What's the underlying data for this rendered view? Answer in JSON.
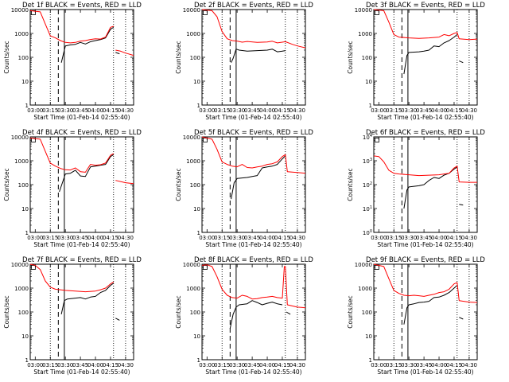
{
  "chart_data": {
    "type": "line",
    "series_colors": {
      "events": "#000000",
      "lld": "#ff0000"
    },
    "x_ticks": [
      "03:00",
      "03:15",
      "03:30",
      "03:45",
      "04:00",
      "04:15",
      "04:30"
    ],
    "x_tick_values_min": [
      180,
      195,
      210,
      225,
      240,
      255,
      270
    ],
    "xlim_min": [
      175,
      278
    ],
    "y_tick_values": [
      1,
      10,
      100,
      1000,
      10000
    ],
    "y_scale": "log",
    "ylim": [
      1,
      10000
    ],
    "xlabel": "Start Time (01-Feb-14 02:55:40)",
    "ylabel": "Counts/sec",
    "markers": {
      "dotted_min": [
        195,
        258,
        270
      ],
      "dashed_min": [
        203
      ],
      "solid_min": [
        209
      ]
    },
    "panels": [
      {
        "title": "Det 1f BLACK = Events, RED = LLD",
        "tick_style": "plain",
        "lld": [
          [
            175,
            9000
          ],
          [
            185,
            8000
          ],
          [
            190,
            2500
          ],
          [
            195,
            800
          ],
          [
            200,
            650
          ],
          [
            205,
            500
          ],
          [
            210,
            420
          ],
          [
            215,
            400
          ],
          [
            220,
            420
          ],
          [
            225,
            480
          ],
          [
            230,
            500
          ],
          [
            235,
            560
          ],
          [
            240,
            600
          ],
          [
            245,
            580
          ],
          [
            250,
            700
          ],
          [
            255,
            1800
          ],
          [
            258,
            2000
          ]
        ],
        "lld_tail": [
          [
            260,
            200
          ],
          [
            265,
            180
          ],
          [
            270,
            150
          ],
          [
            278,
            120
          ]
        ],
        "events": [
          [
            206,
            60
          ],
          [
            210,
            300
          ],
          [
            215,
            330
          ],
          [
            220,
            350
          ],
          [
            225,
            420
          ],
          [
            230,
            360
          ],
          [
            235,
            450
          ],
          [
            240,
            500
          ],
          [
            245,
            550
          ],
          [
            250,
            650
          ],
          [
            255,
            1500
          ],
          [
            258,
            1800
          ]
        ],
        "events_tail": [
          [
            260,
            160
          ],
          [
            264,
            140
          ]
        ]
      },
      {
        "title": "Det 2f BLACK = Events, RED = LLD",
        "tick_style": "plain",
        "lld": [
          [
            175,
            10000
          ],
          [
            185,
            9000
          ],
          [
            190,
            5000
          ],
          [
            195,
            1200
          ],
          [
            200,
            600
          ],
          [
            205,
            500
          ],
          [
            210,
            480
          ],
          [
            215,
            430
          ],
          [
            220,
            460
          ],
          [
            230,
            420
          ],
          [
            240,
            440
          ],
          [
            245,
            470
          ],
          [
            250,
            400
          ],
          [
            255,
            430
          ],
          [
            258,
            450
          ],
          [
            265,
            350
          ],
          [
            270,
            300
          ],
          [
            278,
            250
          ]
        ],
        "lld_tail": [],
        "events": [
          [
            204,
            60
          ],
          [
            206,
            90
          ],
          [
            209,
            220
          ],
          [
            212,
            200
          ],
          [
            220,
            180
          ],
          [
            230,
            190
          ],
          [
            240,
            200
          ],
          [
            245,
            220
          ],
          [
            250,
            170
          ],
          [
            255,
            180
          ],
          [
            258,
            190
          ]
        ],
        "events_tail": []
      },
      {
        "title": "Det 3f BLACK = Events, RED = LLD",
        "tick_style": "plain",
        "lld": [
          [
            175,
            10000
          ],
          [
            185,
            9000
          ],
          [
            190,
            3000
          ],
          [
            195,
            900
          ],
          [
            200,
            700
          ],
          [
            210,
            650
          ],
          [
            220,
            620
          ],
          [
            230,
            650
          ],
          [
            240,
            700
          ],
          [
            245,
            900
          ],
          [
            250,
            800
          ],
          [
            255,
            1000
          ],
          [
            258,
            1100
          ],
          [
            260,
            600
          ],
          [
            270,
            550
          ],
          [
            278,
            580
          ]
        ],
        "lld_tail": [],
        "events": [
          [
            205,
            20
          ],
          [
            208,
            120
          ],
          [
            210,
            160
          ],
          [
            220,
            170
          ],
          [
            225,
            180
          ],
          [
            230,
            200
          ],
          [
            235,
            300
          ],
          [
            240,
            280
          ],
          [
            245,
            400
          ],
          [
            250,
            500
          ],
          [
            255,
            700
          ],
          [
            258,
            900
          ]
        ],
        "events_tail": [
          [
            260,
            70
          ],
          [
            264,
            60
          ]
        ]
      },
      {
        "title": "Det 4f BLACK = Events, RED = LLD",
        "tick_style": "plain",
        "lld": [
          [
            175,
            9000
          ],
          [
            185,
            8000
          ],
          [
            190,
            2500
          ],
          [
            195,
            800
          ],
          [
            200,
            600
          ],
          [
            205,
            480
          ],
          [
            210,
            420
          ],
          [
            215,
            410
          ],
          [
            220,
            500
          ],
          [
            225,
            350
          ],
          [
            230,
            330
          ],
          [
            235,
            700
          ],
          [
            240,
            650
          ],
          [
            245,
            680
          ],
          [
            250,
            800
          ],
          [
            255,
            1700
          ],
          [
            258,
            2000
          ]
        ],
        "lld_tail": [
          [
            260,
            150
          ],
          [
            270,
            120
          ],
          [
            278,
            110
          ]
        ],
        "events": [
          [
            204,
            50
          ],
          [
            210,
            280
          ],
          [
            215,
            300
          ],
          [
            220,
            400
          ],
          [
            225,
            230
          ],
          [
            230,
            220
          ],
          [
            235,
            550
          ],
          [
            240,
            600
          ],
          [
            245,
            650
          ],
          [
            250,
            700
          ],
          [
            255,
            1500
          ],
          [
            258,
            1800
          ]
        ],
        "events_tail": []
      },
      {
        "title": "Det 5f BLACK = Events, RED = LLD",
        "tick_style": "plain",
        "lld": [
          [
            175,
            10000
          ],
          [
            185,
            8000
          ],
          [
            190,
            3000
          ],
          [
            195,
            900
          ],
          [
            200,
            700
          ],
          [
            205,
            600
          ],
          [
            210,
            560
          ],
          [
            215,
            700
          ],
          [
            220,
            520
          ],
          [
            225,
            500
          ],
          [
            230,
            550
          ],
          [
            235,
            600
          ],
          [
            240,
            700
          ],
          [
            245,
            750
          ],
          [
            250,
            900
          ],
          [
            255,
            1500
          ],
          [
            258,
            1800
          ],
          [
            260,
            350
          ],
          [
            270,
            320
          ],
          [
            278,
            300
          ]
        ],
        "lld_tail": [],
        "events": [
          [
            204,
            25
          ],
          [
            207,
            120
          ],
          [
            210,
            180
          ],
          [
            215,
            190
          ],
          [
            220,
            200
          ],
          [
            225,
            220
          ],
          [
            230,
            240
          ],
          [
            235,
            500
          ],
          [
            240,
            550
          ],
          [
            245,
            600
          ],
          [
            250,
            700
          ],
          [
            255,
            1200
          ],
          [
            258,
            1600
          ]
        ],
        "events_tail": []
      },
      {
        "title": "Det 6f BLACK = Events, RED = LLD",
        "tick_style": "power",
        "lld": [
          [
            175,
            1600
          ],
          [
            180,
            1500
          ],
          [
            185,
            900
          ],
          [
            190,
            400
          ],
          [
            195,
            300
          ],
          [
            200,
            280
          ],
          [
            210,
            260
          ],
          [
            220,
            240
          ],
          [
            230,
            250
          ],
          [
            240,
            260
          ],
          [
            245,
            280
          ],
          [
            250,
            300
          ],
          [
            255,
            500
          ],
          [
            258,
            600
          ],
          [
            260,
            130
          ],
          [
            270,
            125
          ],
          [
            278,
            125
          ]
        ],
        "lld_tail": [],
        "events": [
          [
            205,
            10
          ],
          [
            208,
            60
          ],
          [
            210,
            80
          ],
          [
            220,
            90
          ],
          [
            225,
            100
          ],
          [
            230,
            150
          ],
          [
            235,
            200
          ],
          [
            240,
            180
          ],
          [
            245,
            250
          ],
          [
            250,
            300
          ],
          [
            255,
            450
          ],
          [
            258,
            550
          ]
        ],
        "events_tail": [
          [
            260,
            15
          ],
          [
            264,
            14
          ]
        ]
      },
      {
        "title": "Det 7f BLACK = Events, RED = LLD",
        "tick_style": "plain",
        "lld": [
          [
            175,
            10000
          ],
          [
            180,
            9000
          ],
          [
            185,
            6000
          ],
          [
            190,
            2000
          ],
          [
            195,
            1100
          ],
          [
            200,
            900
          ],
          [
            210,
            800
          ],
          [
            220,
            750
          ],
          [
            230,
            700
          ],
          [
            240,
            750
          ],
          [
            245,
            850
          ],
          [
            250,
            1000
          ],
          [
            255,
            1500
          ],
          [
            258,
            1800
          ]
        ],
        "lld_tail": [],
        "events": [
          [
            206,
            80
          ],
          [
            209,
            300
          ],
          [
            212,
            350
          ],
          [
            220,
            380
          ],
          [
            225,
            400
          ],
          [
            230,
            350
          ],
          [
            235,
            420
          ],
          [
            240,
            450
          ],
          [
            245,
            650
          ],
          [
            250,
            800
          ],
          [
            255,
            1300
          ],
          [
            258,
            1600
          ]
        ],
        "events_tail": [
          [
            260,
            55
          ],
          [
            264,
            45
          ]
        ]
      },
      {
        "title": "Det 8f BLACK = Events, RED = LLD",
        "tick_style": "plain",
        "lld": [
          [
            175,
            9000
          ],
          [
            180,
            9500
          ],
          [
            185,
            8000
          ],
          [
            190,
            3000
          ],
          [
            195,
            900
          ],
          [
            200,
            500
          ],
          [
            205,
            400
          ],
          [
            210,
            380
          ],
          [
            215,
            500
          ],
          [
            220,
            450
          ],
          [
            225,
            350
          ],
          [
            230,
            360
          ],
          [
            235,
            400
          ],
          [
            240,
            420
          ],
          [
            245,
            450
          ],
          [
            250,
            400
          ],
          [
            255,
            380
          ],
          [
            257,
            8000
          ],
          [
            258,
            8000
          ],
          [
            260,
            200
          ],
          [
            270,
            160
          ],
          [
            278,
            150
          ]
        ],
        "lld_tail": [],
        "events": [
          [
            203,
            20
          ],
          [
            206,
            80
          ],
          [
            209,
            160
          ],
          [
            212,
            200
          ],
          [
            220,
            220
          ],
          [
            225,
            300
          ],
          [
            230,
            250
          ],
          [
            235,
            200
          ],
          [
            240,
            230
          ],
          [
            245,
            260
          ],
          [
            250,
            220
          ],
          [
            255,
            200
          ]
        ],
        "events_tail": [
          [
            259,
            100
          ],
          [
            263,
            80
          ]
        ]
      },
      {
        "title": "Det 9f BLACK = Events, RED = LLD",
        "tick_style": "plain",
        "lld": [
          [
            175,
            10000
          ],
          [
            185,
            8000
          ],
          [
            190,
            2500
          ],
          [
            195,
            800
          ],
          [
            200,
            600
          ],
          [
            205,
            500
          ],
          [
            210,
            480
          ],
          [
            215,
            500
          ],
          [
            220,
            480
          ],
          [
            225,
            450
          ],
          [
            230,
            500
          ],
          [
            235,
            550
          ],
          [
            240,
            650
          ],
          [
            245,
            700
          ],
          [
            250,
            900
          ],
          [
            255,
            1500
          ],
          [
            258,
            1700
          ],
          [
            260,
            300
          ],
          [
            270,
            260
          ],
          [
            278,
            250
          ]
        ],
        "lld_tail": [],
        "events": [
          [
            205,
            30
          ],
          [
            208,
            150
          ],
          [
            210,
            200
          ],
          [
            215,
            220
          ],
          [
            220,
            250
          ],
          [
            225,
            260
          ],
          [
            230,
            280
          ],
          [
            235,
            400
          ],
          [
            240,
            420
          ],
          [
            245,
            500
          ],
          [
            250,
            650
          ],
          [
            255,
            1000
          ],
          [
            258,
            1300
          ]
        ],
        "events_tail": [
          [
            260,
            60
          ],
          [
            264,
            50
          ]
        ]
      }
    ]
  }
}
